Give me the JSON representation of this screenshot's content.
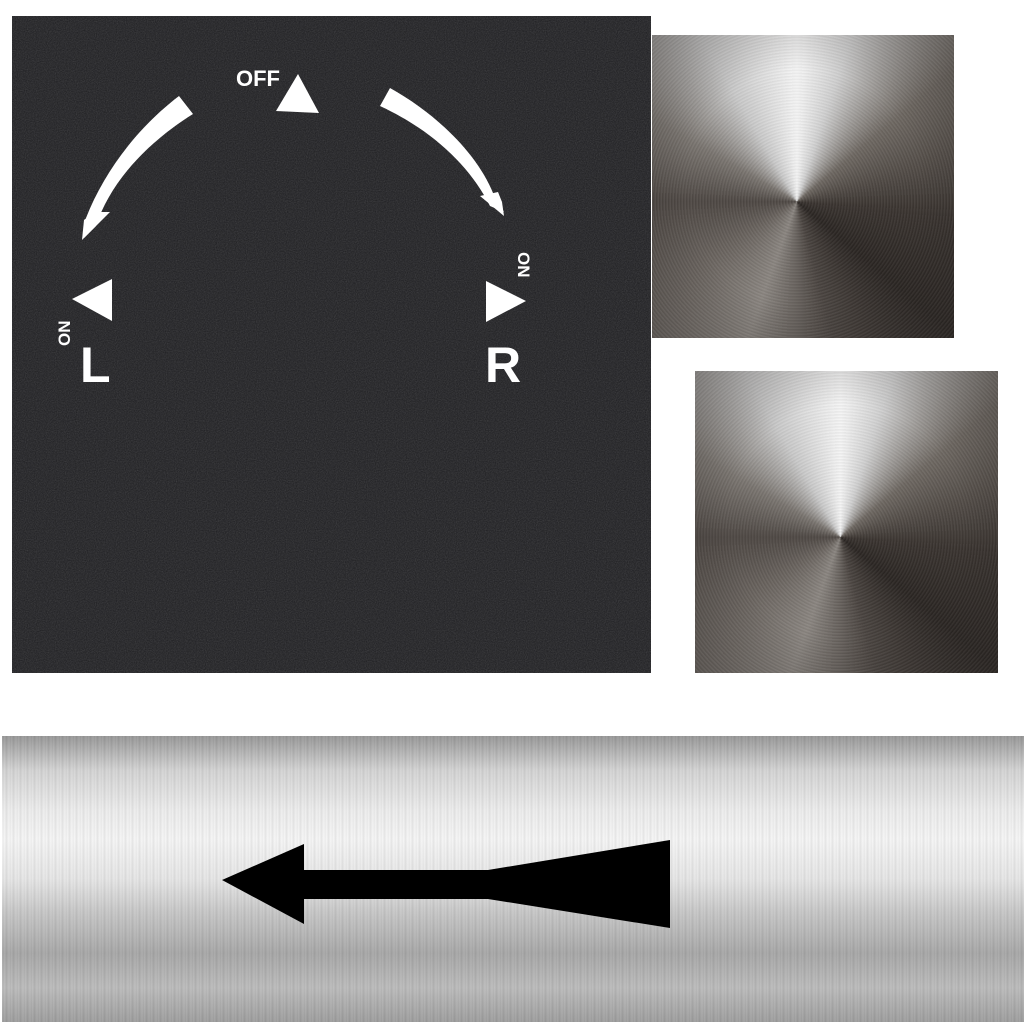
{
  "dial": {
    "off_label": "OFF",
    "left_on_label": "ON",
    "left_letter": "L",
    "right_on_label": "ON",
    "right_letter": "R"
  },
  "colors": {
    "dial_background": "#1d1d20",
    "marking": "#ffffff",
    "arrow": "#000000"
  },
  "icons": {
    "off_marker": "triangle-up-icon",
    "left_marker": "triangle-left-icon",
    "right_marker": "triangle-right-icon",
    "left_arrow": "curved-arrow-icon",
    "right_arrow": "curved-arrow-icon",
    "bar_arrow": "arrow-left-icon"
  }
}
